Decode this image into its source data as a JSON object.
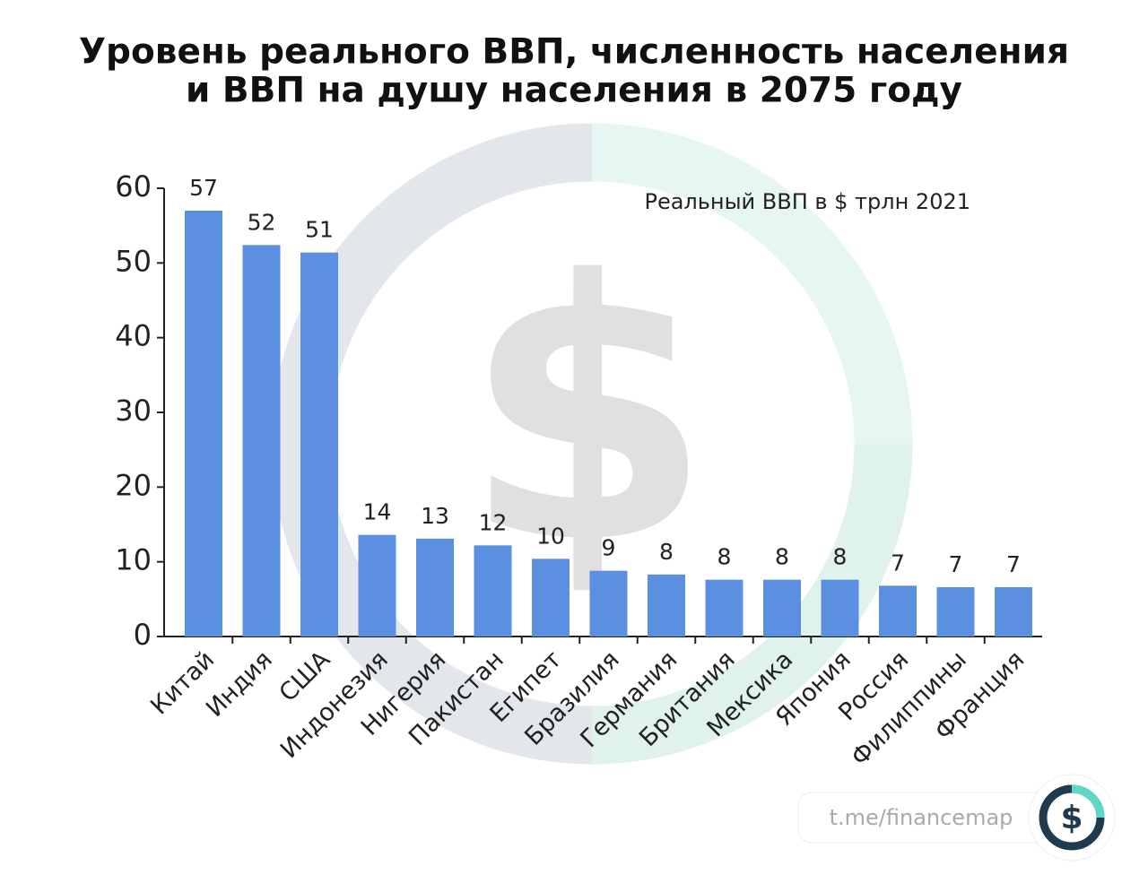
{
  "chart_data": {
    "type": "bar",
    "title": [
      "Уровень реального ВВП, численность населения",
      "и ВВП на душу населения в 2075 году"
    ],
    "annotation": "Реальный ВВП в $ трлн 2021",
    "categories": [
      "Китай",
      "Индия",
      "США",
      "Индонезия",
      "Нигерия",
      "Пакистан",
      "Египет",
      "Бразилия",
      "Германия",
      "Британия",
      "Мексика",
      "Япония",
      "Россия",
      "Филиппины",
      "Франция"
    ],
    "values": [
      57,
      52.4,
      51.4,
      13.6,
      13.1,
      12.2,
      10.4,
      8.8,
      8.3,
      7.6,
      7.6,
      7.6,
      6.8,
      6.6,
      6.6
    ],
    "value_labels": [
      "57",
      "52",
      "51",
      "14",
      "13",
      "12",
      "10",
      "9",
      "8",
      "8",
      "8",
      "8",
      "7",
      "7",
      "7"
    ],
    "color": "#5b8fdf",
    "ylim": [
      0,
      60
    ],
    "yticks": [
      0,
      10,
      20,
      30,
      40,
      50,
      60
    ]
  },
  "footer": {
    "link": "t.me/financemap",
    "logo_symbol": "$"
  }
}
